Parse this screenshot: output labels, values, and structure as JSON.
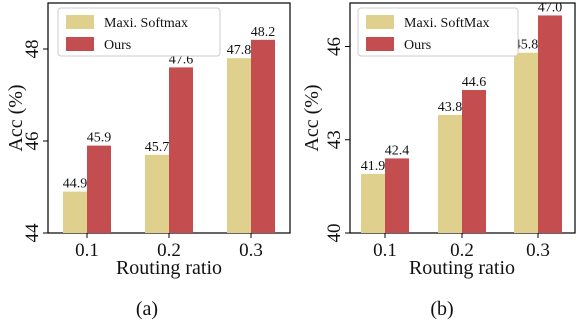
{
  "chart_data": [
    {
      "type": "bar",
      "xlabel": "Routing ratio",
      "ylabel": "Acc (%)",
      "categories": [
        "0.1",
        "0.2",
        "0.3"
      ],
      "ylim": [
        44,
        49
      ],
      "yticks": [
        "44",
        "46",
        "48"
      ],
      "ytick_values": [
        44,
        46,
        48
      ],
      "legend_position": "top-left",
      "grid": false,
      "caption": "(a)",
      "series": [
        {
          "name": "Maxi. Softmax",
          "values": [
            44.9,
            45.7,
            47.8
          ],
          "labels": [
            "44.9",
            "45.7",
            "47.8"
          ],
          "color": "#e0d08e"
        },
        {
          "name": "Ours",
          "values": [
            45.9,
            47.6,
            48.2
          ],
          "labels": [
            "45.9",
            "47.6",
            "48.2"
          ],
          "color": "#c44e4f"
        }
      ]
    },
    {
      "type": "bar",
      "xlabel": "Routing ratio",
      "ylabel": "Acc (%)",
      "categories": [
        "0.1",
        "0.2",
        "0.3"
      ],
      "ylim": [
        40,
        47.4
      ],
      "yticks": [
        "40",
        "43",
        "46"
      ],
      "ytick_values": [
        40,
        43,
        46
      ],
      "legend_position": "top-left",
      "grid": false,
      "caption": "(b)",
      "series": [
        {
          "name": "Maxi. SoftMax",
          "values": [
            41.9,
            43.8,
            45.8
          ],
          "labels": [
            "41.9",
            "43.8",
            "45.8"
          ],
          "color": "#e0d08e"
        },
        {
          "name": "Ours",
          "values": [
            42.4,
            44.6,
            47.0
          ],
          "labels": [
            "42.4",
            "44.6",
            "47.0"
          ],
          "color": "#c44e4f"
        }
      ]
    }
  ]
}
